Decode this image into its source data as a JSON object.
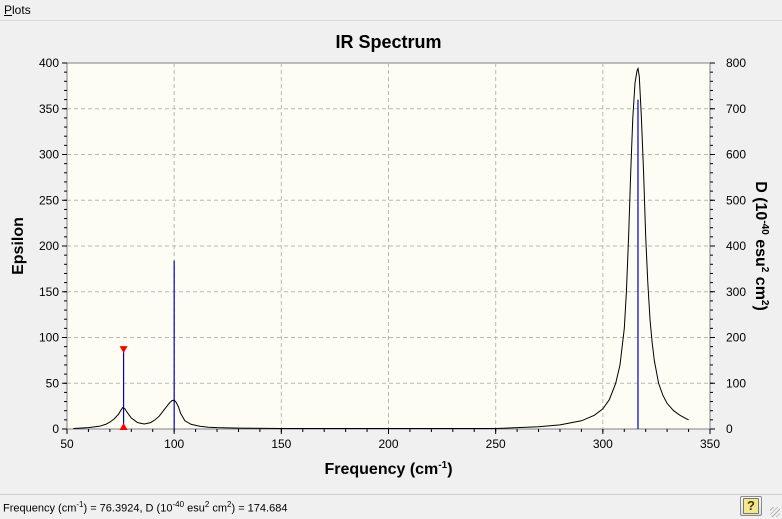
{
  "menu": {
    "plots_prefix": "P",
    "plots_rest": "lots"
  },
  "chart_data": {
    "type": "line",
    "title": "IR Spectrum",
    "xlabel": "Frequency (cm",
    "xlabel_sup": "-1",
    "xlabel_end": ")",
    "ylabel_left": "Epsilon",
    "ylabel_right_parts": [
      "D (10",
      "-40",
      " esu",
      "2",
      " cm",
      "2",
      ")"
    ],
    "xlim": [
      50,
      350
    ],
    "ylim_left": [
      0,
      400
    ],
    "ylim_right": [
      0,
      800
    ],
    "x_ticks": [
      50,
      100,
      150,
      200,
      250,
      300,
      350
    ],
    "y_ticks_left": [
      0,
      50,
      100,
      150,
      200,
      250,
      300,
      350,
      400
    ],
    "y_ticks_right": [
      0,
      100,
      200,
      300,
      400,
      500,
      600,
      700,
      800
    ],
    "grid": true,
    "spectrum": {
      "name": "Epsilon",
      "x": [
        53,
        60,
        65,
        68,
        70,
        72,
        74,
        75,
        76,
        77,
        78,
        80,
        83,
        86,
        89,
        91,
        93,
        95,
        97,
        98,
        99,
        100,
        101,
        102,
        103,
        105,
        108,
        112,
        116,
        120,
        130,
        150,
        200,
        250,
        260,
        270,
        280,
        290,
        296,
        300,
        303,
        306,
        308,
        310,
        311,
        312,
        313,
        314,
        315,
        316,
        316.4,
        317,
        318,
        319,
        320,
        321,
        322,
        323,
        324,
        326,
        328,
        330,
        333,
        336,
        340
      ],
      "y": [
        0.5,
        1.5,
        3,
        5,
        7.5,
        11,
        16,
        20,
        23.5,
        22,
        18.5,
        12,
        7,
        5.5,
        7,
        10,
        14,
        20,
        26,
        29,
        31,
        31.5,
        29,
        24,
        17,
        9,
        5,
        3,
        2,
        1.5,
        1,
        0.5,
        0.5,
        0.5,
        1.5,
        2.5,
        4.5,
        9,
        15,
        22,
        32,
        50,
        70,
        110,
        150,
        210,
        280,
        340,
        378,
        392,
        394,
        385,
        340,
        280,
        210,
        160,
        120,
        95,
        75,
        50,
        37,
        28,
        20,
        15,
        10
      ]
    },
    "sticks": [
      {
        "x": 76.4,
        "y": 87.3
      },
      {
        "x": 100,
        "y": 184
      },
      {
        "x": 316.4,
        "y": 360
      }
    ],
    "markers": {
      "x": 76.4,
      "top": 87.3,
      "bottom": 0
    }
  },
  "status": {
    "text_parts": [
      "Frequency (cm",
      "-1",
      ") = 76.3924, D (10",
      "-40",
      " esu",
      "2",
      " cm",
      "2",
      ") = 174.684"
    ]
  },
  "colors": {
    "plot_bg": "#fdfdf4",
    "stick": "#0000cc",
    "spectrum": "#000000",
    "marker": "#ff0000",
    "grid": "#b8b8b8"
  }
}
